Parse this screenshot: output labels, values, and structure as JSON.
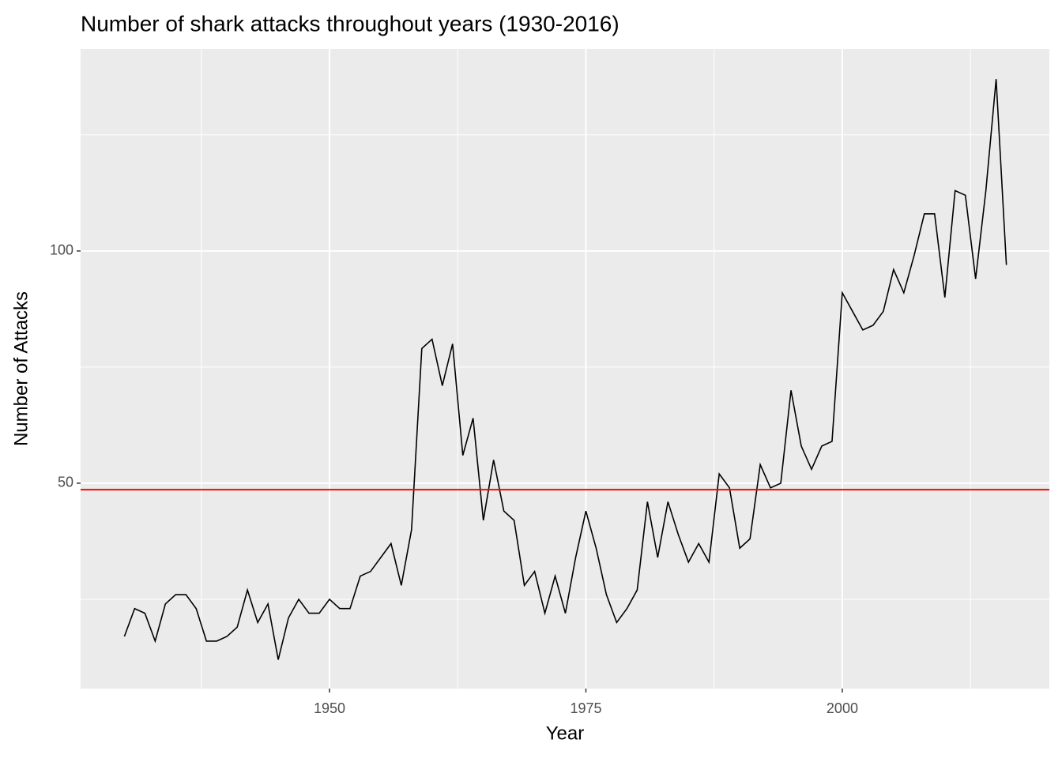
{
  "chart_data": {
    "type": "line",
    "title": "Number of shark attacks throughout years (1930-2016)",
    "x_label": "Year",
    "y_label": "Number of Attacks",
    "x": [
      1930,
      1931,
      1932,
      1933,
      1934,
      1935,
      1936,
      1937,
      1938,
      1939,
      1940,
      1941,
      1942,
      1943,
      1944,
      1945,
      1946,
      1947,
      1948,
      1949,
      1950,
      1951,
      1952,
      1953,
      1954,
      1955,
      1956,
      1957,
      1958,
      1959,
      1960,
      1961,
      1962,
      1963,
      1964,
      1965,
      1966,
      1967,
      1968,
      1969,
      1970,
      1971,
      1972,
      1973,
      1974,
      1975,
      1976,
      1977,
      1978,
      1979,
      1980,
      1981,
      1982,
      1983,
      1984,
      1985,
      1986,
      1987,
      1988,
      1989,
      1990,
      1991,
      1992,
      1993,
      1994,
      1995,
      1996,
      1997,
      1998,
      1999,
      2000,
      2001,
      2002,
      2003,
      2004,
      2005,
      2006,
      2007,
      2008,
      2009,
      2010,
      2011,
      2012,
      2013,
      2014,
      2015,
      2016
    ],
    "series": [
      {
        "color": "#000000",
        "values": [
          17,
          23,
          22,
          16,
          24,
          26,
          26,
          23,
          16,
          16,
          17,
          19,
          27,
          20,
          24,
          12,
          21,
          25,
          22,
          22,
          25,
          23,
          23,
          30,
          31,
          34,
          37,
          28,
          40,
          79,
          81,
          71,
          80,
          56,
          64,
          42,
          55,
          44,
          42,
          28,
          31,
          22,
          30,
          22,
          34,
          44,
          36,
          26,
          20,
          23,
          27,
          46,
          34,
          46,
          39,
          33,
          37,
          33,
          52,
          49,
          36,
          38,
          54,
          49,
          50,
          70,
          58,
          53,
          58,
          59,
          91,
          87,
          83,
          84,
          87,
          96,
          91,
          99,
          108,
          108,
          90,
          113,
          112,
          94,
          113,
          137,
          97
        ]
      }
    ],
    "hline": {
      "value": 48.6,
      "color": "#ff0000"
    },
    "xlim": [
      1925.73,
      2020.19
    ],
    "ylim": [
      5.78,
      143.5
    ],
    "xticks": [
      1950,
      1975,
      2000
    ],
    "yticks": [
      50,
      100
    ],
    "x_minor_breaks": [
      1937.5,
      1962.5,
      1987.5,
      2012.5
    ],
    "y_minor_breaks": [
      25,
      75,
      125
    ],
    "grid": true
  }
}
